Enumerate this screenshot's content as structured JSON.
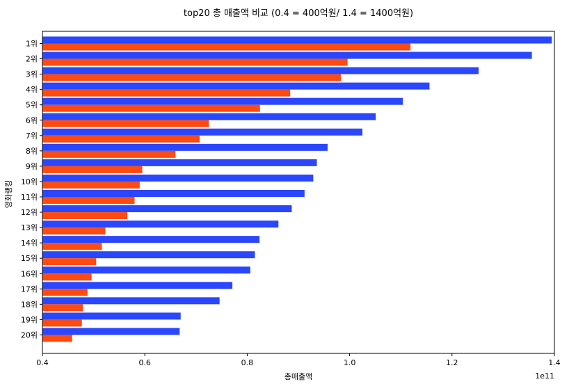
{
  "chart_data": {
    "type": "bar",
    "orientation": "horizontal",
    "title": "top20 총 매출액 비교 (0.4 = 400억원/ 1.4 = 1400억원)",
    "xlabel": "총매출액",
    "ylabel": "영화랭킹",
    "offset_text": "1e11",
    "xlim": [
      0.4,
      1.4
    ],
    "x_ticks": [
      "0.4",
      "0.6",
      "0.8",
      "1.0",
      "1.2",
      "1.4"
    ],
    "categories": [
      "1위",
      "2위",
      "3위",
      "4위",
      "5위",
      "6위",
      "7위",
      "8위",
      "9위",
      "10위",
      "11위",
      "12위",
      "13위",
      "14위",
      "15위",
      "16위",
      "17위",
      "18위",
      "19위",
      "20위"
    ],
    "grid": false,
    "series": [
      {
        "color": "#2a46ff",
        "values": [
          1.395,
          1.356,
          1.252,
          1.156,
          1.104,
          1.051,
          1.025,
          0.957,
          0.936,
          0.929,
          0.912,
          0.887,
          0.861,
          0.824,
          0.815,
          0.806,
          0.771,
          0.746,
          0.67,
          0.668
        ]
      },
      {
        "color": "#ff4a10",
        "values": [
          1.119,
          0.996,
          0.983,
          0.884,
          0.825,
          0.725,
          0.707,
          0.66,
          0.595,
          0.59,
          0.58,
          0.566,
          0.523,
          0.516,
          0.505,
          0.496,
          0.488,
          0.479,
          0.477,
          0.458
        ]
      }
    ]
  }
}
